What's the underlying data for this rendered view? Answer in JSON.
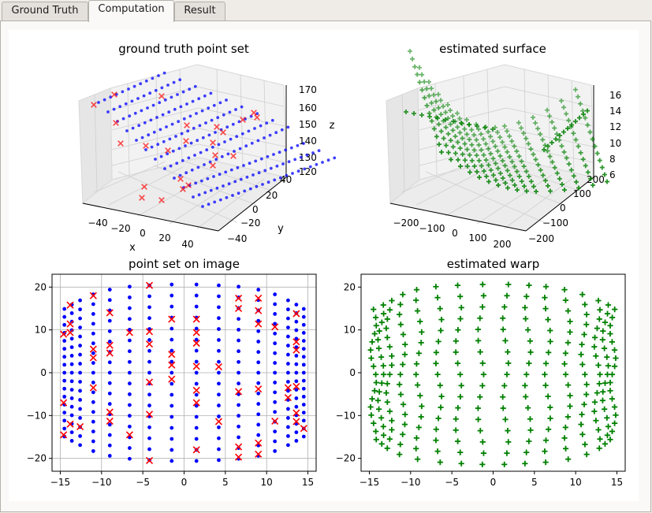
{
  "tabs": [
    {
      "label": "Ground Truth",
      "active": false
    },
    {
      "label": "Computation",
      "active": true
    },
    {
      "label": "Result",
      "active": false
    }
  ],
  "colors": {
    "blue": "#0000ff",
    "red": "#ff0000",
    "green": "#008000"
  },
  "chart_data": [
    {
      "type": "scatter3d",
      "title": "ground truth point set",
      "xlabel": "x",
      "ylabel": "y",
      "zlabel": "z",
      "xticks": [
        "−40",
        "−20",
        "0",
        "20",
        "40"
      ],
      "yticks": [
        "−40",
        "−20",
        "0",
        "20",
        "40"
      ],
      "zticks": [
        "120",
        "130",
        "140",
        "150",
        "160",
        "170"
      ],
      "series": [
        {
          "marker": "dot",
          "color": "#0000ff"
        },
        {
          "marker": "x",
          "color": "#ff0000"
        }
      ]
    },
    {
      "type": "scatter3d",
      "title": "estimated surface",
      "xticks": [
        "−200",
        "−100",
        "0",
        "100",
        "200"
      ],
      "yticks": [
        "−200",
        "−100",
        "0",
        "100",
        "200"
      ],
      "zticks": [
        "6",
        "8",
        "10",
        "12",
        "14",
        "16"
      ],
      "series": [
        {
          "marker": "plus",
          "color": "#008000"
        }
      ]
    },
    {
      "type": "scatter",
      "title": "point set on image",
      "grid": true,
      "xlim": [
        -16,
        16
      ],
      "ylim": [
        -23,
        23
      ],
      "xticks": [
        "−15",
        "−10",
        "−5",
        "0",
        "5",
        "10",
        "15"
      ],
      "yticks": [
        "−20",
        "−10",
        "0",
        "10",
        "20"
      ],
      "columns_x": [
        -14.5,
        -13.6,
        -12.6,
        -11,
        -9,
        -6.6,
        -4.2,
        -1.5,
        1.5,
        4.2,
        6.6,
        9,
        11,
        12.6,
        13.6,
        14.5
      ],
      "columns_ymax": [
        14.9,
        15.9,
        16.9,
        18.3,
        19.4,
        20.1,
        20.4,
        20.6,
        20.6,
        20.4,
        20.1,
        19.4,
        18.3,
        16.9,
        15.9,
        14.9
      ],
      "rows_per_column": 17,
      "red_points": [
        [
          -14.6,
          9
        ],
        [
          -13.8,
          15.8
        ],
        [
          -13.8,
          11.4
        ],
        [
          -13.8,
          9.4
        ],
        [
          -14.6,
          -7
        ],
        [
          -14.6,
          -14.5
        ],
        [
          -13.8,
          -12
        ],
        [
          -12.6,
          -12.6
        ],
        [
          -11,
          18
        ],
        [
          -11,
          5.5
        ],
        [
          -11,
          3.5
        ],
        [
          -11,
          -3.5
        ],
        [
          -9,
          14
        ],
        [
          -9,
          6.4
        ],
        [
          -9,
          4.6
        ],
        [
          -9,
          -9.2
        ],
        [
          -9,
          -11.3
        ],
        [
          -6.6,
          9.4
        ],
        [
          -6.6,
          -14.5
        ],
        [
          -4.2,
          20.4
        ],
        [
          -4.2,
          9.6
        ],
        [
          -4.2,
          6.7
        ],
        [
          -4.2,
          -2.2
        ],
        [
          -4.2,
          -9.7
        ],
        [
          -4.2,
          -20.5
        ],
        [
          -1.5,
          12.5
        ],
        [
          -1.5,
          4.3
        ],
        [
          -1.5,
          1.8
        ],
        [
          -1.5,
          -1.5
        ],
        [
          1.5,
          12.5
        ],
        [
          1.5,
          9.4
        ],
        [
          1.5,
          6.9
        ],
        [
          1.5,
          1.5
        ],
        [
          1.5,
          -4.1
        ],
        [
          1.5,
          -7
        ],
        [
          1.5,
          -18
        ],
        [
          4.2,
          1.4
        ],
        [
          4.2,
          -11.4
        ],
        [
          6.6,
          17.4
        ],
        [
          6.6,
          15
        ],
        [
          6.6,
          -4.4
        ],
        [
          6.6,
          -17.3
        ],
        [
          6.6,
          -19.7
        ],
        [
          9,
          17.4
        ],
        [
          9,
          14.5
        ],
        [
          9,
          11.4
        ],
        [
          9,
          -3.8
        ],
        [
          9,
          -16.4
        ],
        [
          9,
          -19
        ],
        [
          11,
          10.7
        ],
        [
          11,
          -11.3
        ],
        [
          12.6,
          -3.5
        ],
        [
          12.6,
          -5.8
        ],
        [
          13.6,
          13.8
        ],
        [
          13.6,
          7.2
        ],
        [
          13.6,
          5.3
        ],
        [
          13.6,
          -3.2
        ],
        [
          13.6,
          -9.4
        ],
        [
          13.6,
          -11.4
        ],
        [
          14.5,
          -13
        ]
      ]
    },
    {
      "type": "scatter",
      "title": "estimated warp",
      "xlim": [
        -16,
        16
      ],
      "ylim": [
        -23,
        23
      ],
      "xticks": [
        "−15",
        "−10",
        "−5",
        "0",
        "5",
        "10",
        "15"
      ],
      "yticks": [
        "−20",
        "−10",
        "0",
        "10",
        "20"
      ],
      "marker": "plus",
      "color": "#008000"
    }
  ]
}
